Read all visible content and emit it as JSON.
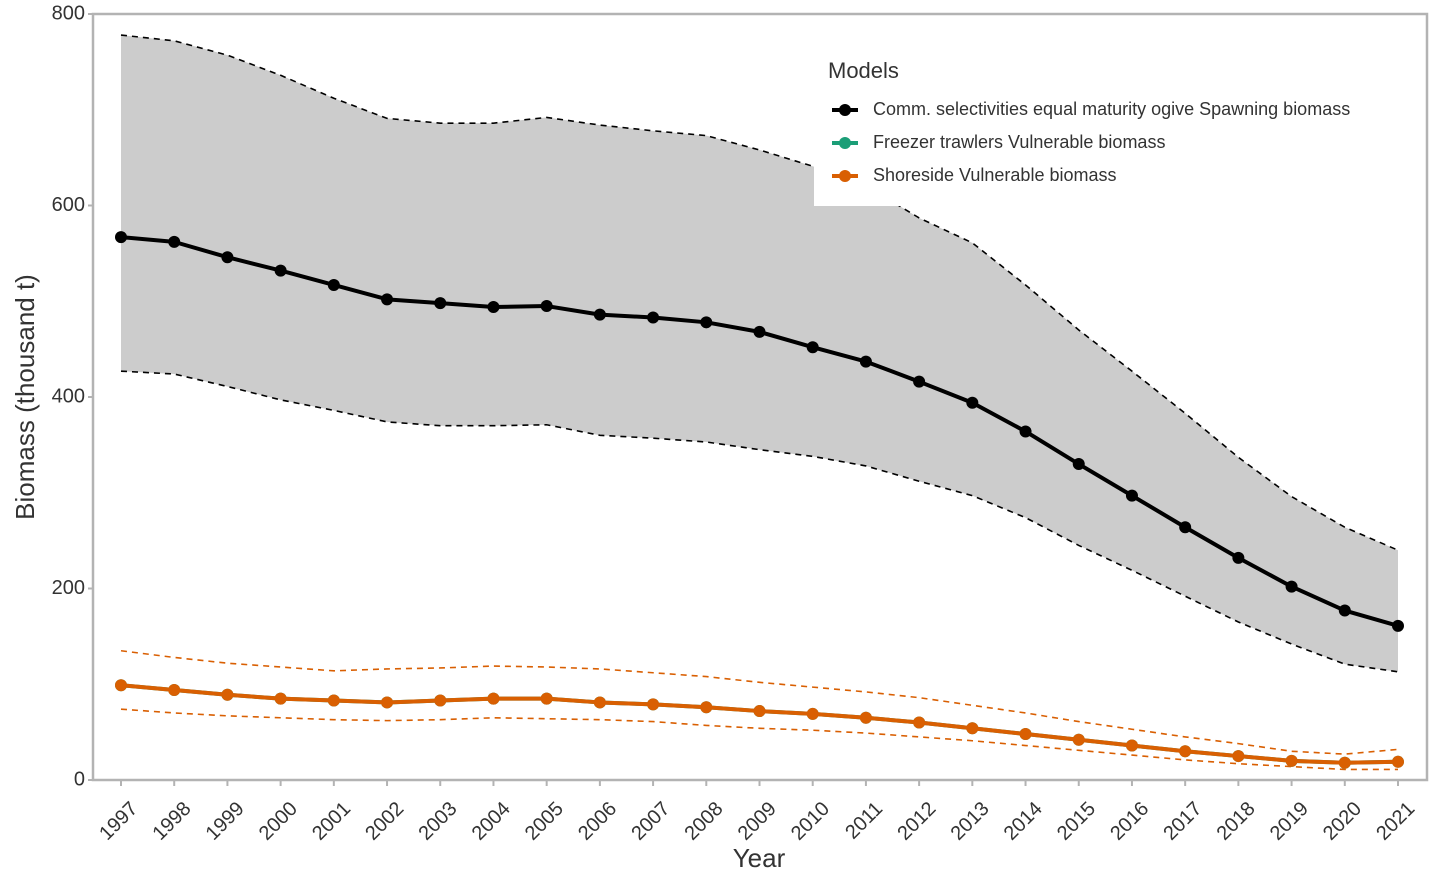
{
  "chart_data": {
    "type": "line",
    "xlabel": "Year",
    "ylabel": "Biomass (thousand t)",
    "categories": [
      "1997",
      "1998",
      "1999",
      "2000",
      "2001",
      "2002",
      "2003",
      "2004",
      "2005",
      "2006",
      "2007",
      "2008",
      "2009",
      "2010",
      "2011",
      "2012",
      "2013",
      "2014",
      "2015",
      "2016",
      "2017",
      "2018",
      "2019",
      "2020",
      "2021"
    ],
    "ylim": [
      0,
      800
    ],
    "yticks": [
      0,
      200,
      400,
      600,
      800
    ],
    "legend_title": "Models",
    "legend": "top-right",
    "series": [
      {
        "name": "Comm. selectivities equal maturity ogive Spawning biomass",
        "color": "#000000",
        "values": [
          567,
          562,
          546,
          532,
          517,
          502,
          498,
          494,
          495,
          486,
          483,
          478,
          468,
          452,
          437,
          416,
          394,
          364,
          330,
          297,
          264,
          232,
          202,
          177,
          161
        ],
        "upper": [
          778,
          772,
          757,
          736,
          712,
          691,
          686,
          686,
          692,
          684,
          678,
          673,
          658,
          641,
          621,
          587,
          561,
          517,
          470,
          427,
          383,
          337,
          296,
          264,
          240
        ],
        "lower": [
          427,
          424,
          411,
          397,
          386,
          374,
          370,
          370,
          371,
          360,
          357,
          353,
          345,
          338,
          328,
          312,
          297,
          274,
          245,
          219,
          192,
          165,
          142,
          121,
          113
        ]
      },
      {
        "name": "Freezer trawlers Vulnerable biomass",
        "color": "#1b9e77",
        "values": [
          99,
          94,
          89,
          85,
          83,
          81,
          83,
          85,
          85,
          81,
          79,
          76,
          72,
          69,
          65,
          60,
          54,
          48,
          42,
          36,
          30,
          25,
          20,
          18,
          19
        ]
      },
      {
        "name": "Shoreside Vulnerable biomass",
        "color": "#d95f02",
        "values": [
          99,
          94,
          89,
          85,
          83,
          81,
          83,
          85,
          85,
          81,
          79,
          76,
          72,
          69,
          65,
          60,
          54,
          48,
          42,
          36,
          30,
          25,
          20,
          18,
          19
        ],
        "upper": [
          135,
          128,
          122,
          118,
          114,
          116,
          117,
          119,
          118,
          116,
          112,
          108,
          102,
          97,
          92,
          86,
          78,
          70,
          61,
          53,
          45,
          38,
          30,
          27,
          32
        ],
        "lower": [
          74,
          70,
          67,
          65,
          63,
          62,
          63,
          65,
          64,
          63,
          61,
          57,
          54,
          52,
          49,
          45,
          41,
          36,
          31,
          26,
          21,
          17,
          14,
          11,
          11
        ]
      }
    ]
  }
}
